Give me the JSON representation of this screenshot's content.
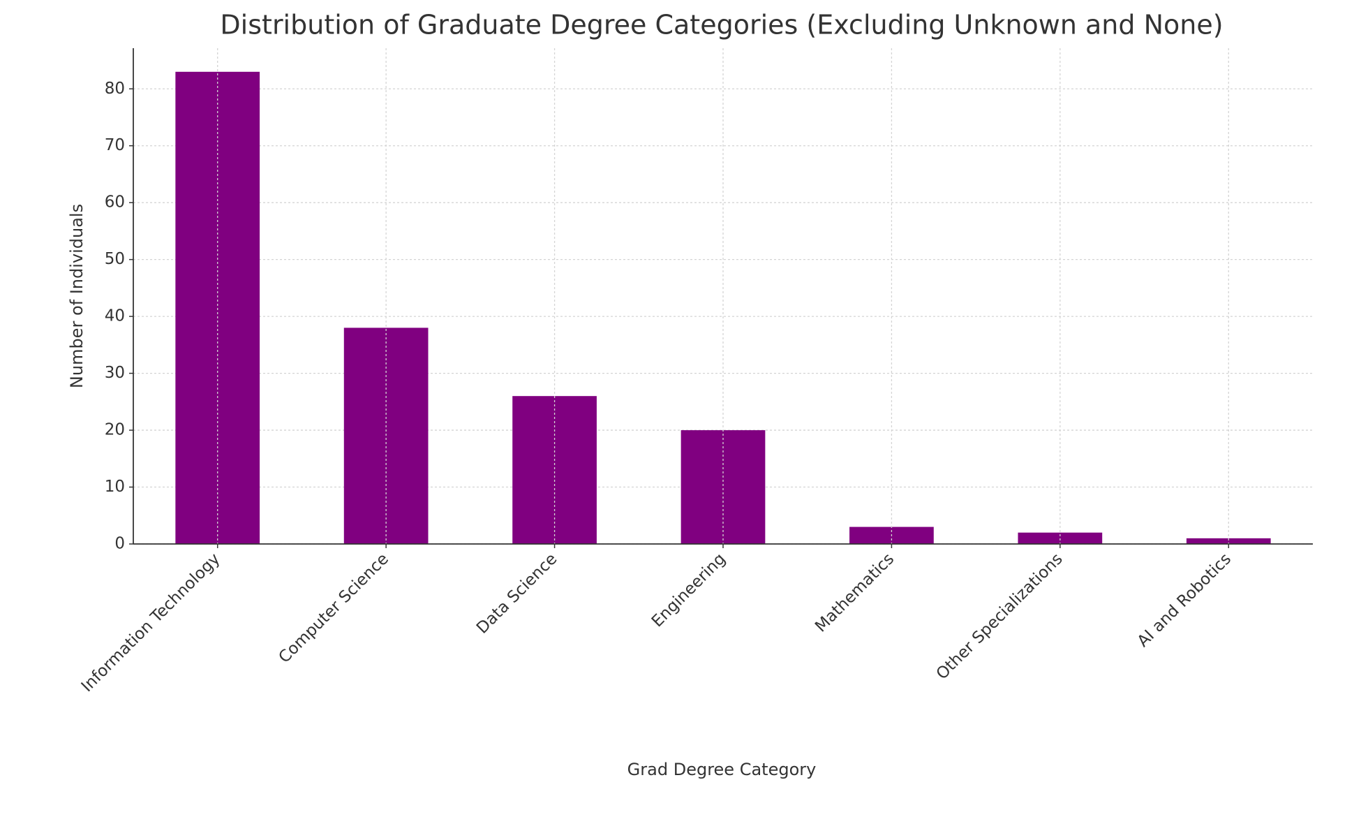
{
  "chart_data": {
    "type": "bar",
    "title": "Distribution of Graduate Degree Categories (Excluding Unknown and None)",
    "x_label": "Grad Degree Category",
    "y_label": "Number of Individuals",
    "categories": [
      "Information Technology",
      "Computer Science",
      "Data Science",
      "Engineering",
      "Mathematics",
      "Other Specializations",
      "AI and Robotics"
    ],
    "values": [
      83,
      38,
      26,
      20,
      3,
      2,
      1
    ],
    "color": "#800080",
    "ylim": [
      0,
      87.15
    ],
    "yticks": [
      0,
      10,
      20,
      30,
      40,
      50,
      60,
      70,
      80
    ],
    "grid": true
  }
}
